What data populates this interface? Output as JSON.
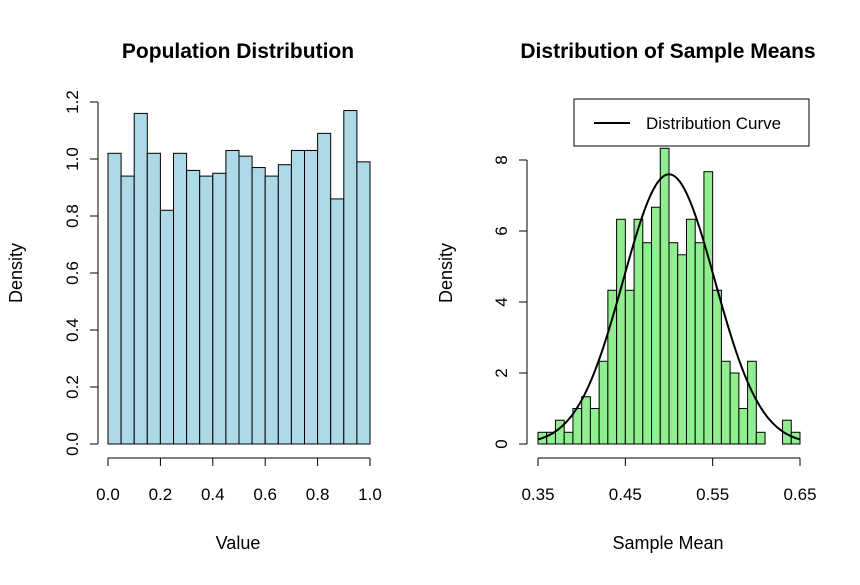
{
  "chart_data": [
    {
      "type": "histogram",
      "title": "Population Distribution",
      "xlabel": "Value",
      "ylabel": "Density",
      "xlim": [
        0.0,
        1.0
      ],
      "ylim": [
        0.0,
        1.2
      ],
      "xticks": [
        "0.0",
        "0.2",
        "0.4",
        "0.6",
        "0.8",
        "1.0"
      ],
      "yticks": [
        "0.0",
        "0.2",
        "0.4",
        "0.6",
        "0.8",
        "1.0",
        "1.2"
      ],
      "bar_color": "#ADD8E6",
      "bin_edges": [
        0.0,
        0.05,
        0.1,
        0.15,
        0.2,
        0.25,
        0.3,
        0.35,
        0.4,
        0.45,
        0.5,
        0.55,
        0.6,
        0.65,
        0.7,
        0.75,
        0.8,
        0.85,
        0.9,
        0.95,
        1.0
      ],
      "values": [
        1.02,
        0.94,
        1.16,
        1.02,
        0.82,
        1.02,
        0.96,
        0.94,
        0.95,
        1.03,
        1.01,
        0.97,
        0.94,
        0.98,
        1.03,
        1.03,
        1.09,
        0.86,
        1.17,
        0.99
      ]
    },
    {
      "type": "histogram",
      "title": "Distribution of Sample Means",
      "xlabel": "Sample Mean",
      "ylabel": "Density",
      "xlim": [
        0.35,
        0.65
      ],
      "ylim": [
        0,
        8
      ],
      "xticks": [
        "0.35",
        "0.45",
        "0.55",
        "0.65"
      ],
      "yticks": [
        "0",
        "2",
        "4",
        "6",
        "8"
      ],
      "bar_color": "#90EE90",
      "bin_edges": [
        0.35,
        0.36,
        0.37,
        0.38,
        0.39,
        0.4,
        0.41,
        0.42,
        0.43,
        0.44,
        0.45,
        0.46,
        0.47,
        0.48,
        0.49,
        0.5,
        0.51,
        0.52,
        0.53,
        0.54,
        0.55,
        0.56,
        0.57,
        0.58,
        0.59,
        0.6,
        0.61,
        0.62,
        0.63,
        0.64,
        0.65
      ],
      "values": [
        0.33,
        0.33,
        0.67,
        0.33,
        1.0,
        1.33,
        1.0,
        2.33,
        4.33,
        6.33,
        4.33,
        6.33,
        5.67,
        6.67,
        8.33,
        5.67,
        5.33,
        6.33,
        5.67,
        7.67,
        4.33,
        2.33,
        2.0,
        1.0,
        2.33,
        0.33,
        0,
        0,
        0.67,
        0.33
      ],
      "curve": {
        "label": "Distribution Curve",
        "mean": 0.5,
        "sd": 0.0525,
        "color": "#000000"
      },
      "legend": {
        "entries": [
          "Distribution Curve"
        ],
        "position": "top-right"
      }
    }
  ]
}
